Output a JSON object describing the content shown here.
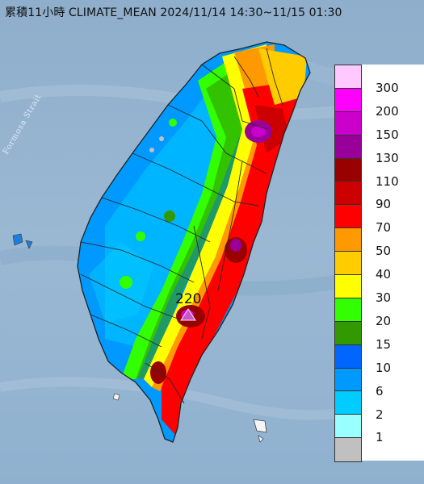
{
  "title": "累積11小時 CLIMATE_MEAN 2024/11/14 14:30~11/15 01:30",
  "sea_label": "Formosa Strait",
  "max_marker": {
    "value": "220",
    "shape": "triangle",
    "color": "#cc55cc"
  },
  "legend": {
    "colors": [
      "#ffc8ff",
      "#ff00ff",
      "#cc00cc",
      "#990099",
      "#990000",
      "#cc0000",
      "#ff0000",
      "#ff9900",
      "#ffcc00",
      "#ffff00",
      "#33ff00",
      "#339900",
      "#0066ff",
      "#0099ff",
      "#00ccff",
      "#99ffff",
      "#c0c0c0"
    ],
    "labels": [
      "300",
      "200",
      "150",
      "130",
      "110",
      "90",
      "70",
      "50",
      "40",
      "30",
      "20",
      "15",
      "10",
      "6",
      "2",
      "1"
    ]
  }
}
